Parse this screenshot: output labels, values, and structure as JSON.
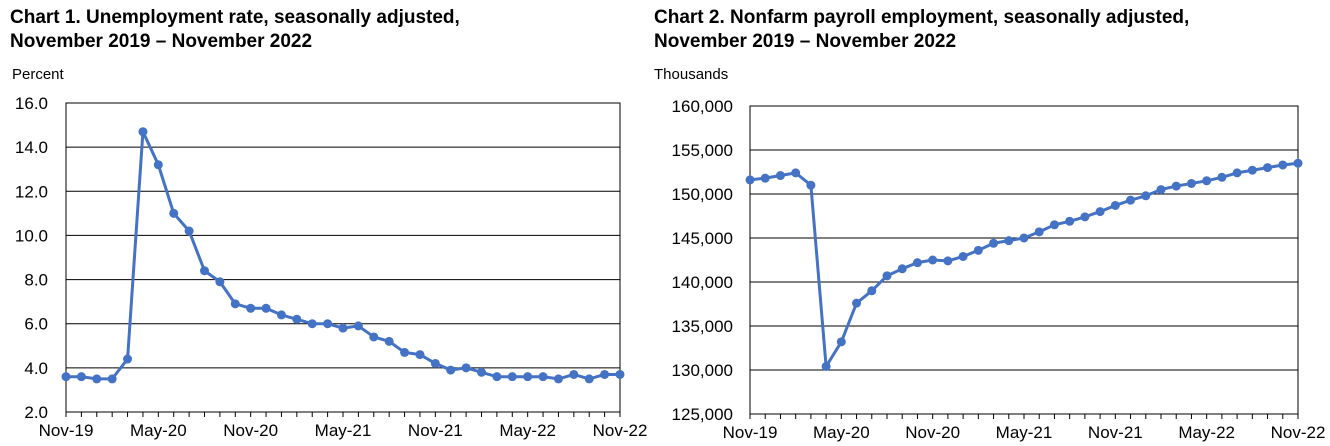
{
  "chart_data": [
    {
      "type": "line",
      "title_line1": "Chart 1. Unemployment rate, seasonally adjusted,",
      "title_line2": "November 2019 – November 2022",
      "ylabel": "Percent",
      "xlabel": "",
      "ylim": [
        2.0,
        16.0
      ],
      "yticks": [
        2.0,
        4.0,
        6.0,
        8.0,
        10.0,
        12.0,
        14.0,
        16.0
      ],
      "ytick_labels": [
        "2.0",
        "4.0",
        "6.0",
        "8.0",
        "10.0",
        "12.0",
        "14.0",
        "16.0"
      ],
      "xtick_labels": [
        "Nov-19",
        "May-20",
        "Nov-20",
        "May-21",
        "Nov-21",
        "May-22",
        "Nov-22"
      ],
      "grid": true,
      "color": "#4472C4",
      "series": [
        {
          "name": "Unemployment rate",
          "values": [
            3.6,
            3.6,
            3.5,
            3.5,
            4.4,
            14.7,
            13.2,
            11.0,
            10.2,
            8.4,
            7.9,
            6.9,
            6.7,
            6.7,
            6.4,
            6.2,
            6.0,
            6.0,
            5.8,
            5.9,
            5.4,
            5.2,
            4.7,
            4.6,
            4.2,
            3.9,
            4.0,
            3.8,
            3.6,
            3.6,
            3.6,
            3.6,
            3.5,
            3.7,
            3.5,
            3.7,
            3.7
          ]
        }
      ]
    },
    {
      "type": "line",
      "title_line1": "Chart 2. Nonfarm payroll employment, seasonally adjusted,",
      "title_line2": "November 2019 – November 2022",
      "ylabel": "Thousands",
      "xlabel": "",
      "ylim": [
        125000,
        160000
      ],
      "yticks": [
        125000,
        130000,
        135000,
        140000,
        145000,
        150000,
        155000,
        160000
      ],
      "ytick_labels": [
        "125,000",
        "130,000",
        "135,000",
        "140,000",
        "145,000",
        "150,000",
        "155,000",
        "160,000"
      ],
      "xtick_labels": [
        "Nov-19",
        "May-20",
        "Nov-20",
        "May-21",
        "Nov-21",
        "May-22",
        "Nov-22"
      ],
      "grid": true,
      "color": "#4472C4",
      "series": [
        {
          "name": "Nonfarm payroll employment",
          "values": [
            151600,
            151800,
            152100,
            152400,
            151000,
            130400,
            133200,
            137600,
            139000,
            140700,
            141500,
            142200,
            142500,
            142400,
            142900,
            143600,
            144400,
            144700,
            145000,
            145700,
            146500,
            146900,
            147400,
            148000,
            148700,
            149300,
            149800,
            150500,
            150900,
            151200,
            151500,
            151900,
            152400,
            152700,
            153000,
            153300,
            153500
          ]
        }
      ]
    }
  ]
}
